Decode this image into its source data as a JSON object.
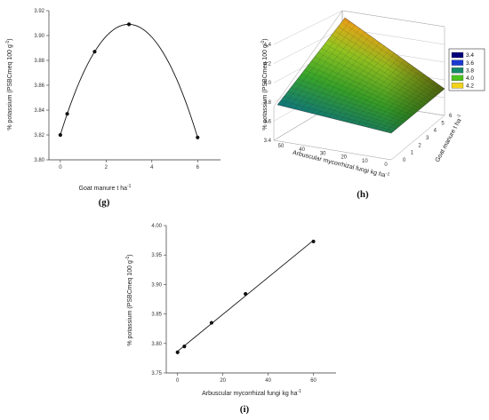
{
  "chart_data": [
    {
      "panel": "(g)",
      "type": "line",
      "xlabel": "Goat manure t ha",
      "xlabel_sup": "-1",
      "ylabel": "% potassium (PSBCmeq 100 g",
      "ylabel_sup": "-1",
      "ylabel_end": ")",
      "xlim": [
        -0.5,
        7
      ],
      "ylim": [
        3.8,
        3.92
      ],
      "xticks": [
        "0",
        "2",
        "4",
        "6"
      ],
      "yticks": [
        "3.80",
        "3.82",
        "3.84",
        "3.86",
        "3.88",
        "3.90",
        "3.92"
      ],
      "points": [
        {
          "x": 0,
          "y": 3.82
        },
        {
          "x": 0.3,
          "y": 3.837
        },
        {
          "x": 1.5,
          "y": 3.887
        },
        {
          "x": 3,
          "y": 3.909
        },
        {
          "x": 6,
          "y": 3.818
        }
      ],
      "fit": "quadratic"
    },
    {
      "panel": "(h)",
      "type": "surface",
      "xlabel": "Arbuscular mycorrhizal fungi kg ha",
      "xlabel_sup": "-1",
      "ylabel": "Goat manure t ha",
      "ylabel_sup": "-1",
      "zlabel": "% potassium (PSBCmeq 100 g",
      "zlabel_sup": "-1",
      "zlabel_end": ")",
      "xticks": [
        "50",
        "40",
        "30",
        "20",
        "10",
        "0"
      ],
      "yticks": [
        "0",
        "1",
        "2",
        "3",
        "4",
        "5",
        "6"
      ],
      "zticks": [
        "3.4",
        "3.6",
        "3.8",
        "4.0",
        "4.2",
        "4.4"
      ],
      "legend": {
        "placement": "top-right",
        "entries": [
          {
            "label": "3.4",
            "color": "#00007a"
          },
          {
            "label": "3.6",
            "color": "#1a3ad0"
          },
          {
            "label": "3.8",
            "color": "#178a6a"
          },
          {
            "label": "4.0",
            "color": "#4cc21e"
          },
          {
            "label": "4.2",
            "color": "#f2d21a"
          }
        ]
      }
    },
    {
      "panel": "(i)",
      "type": "line",
      "xlabel": "Arbuscular mycorrhizal fungi kg ha",
      "xlabel_sup": "-1",
      "ylabel": "% potassium (PSBCmeq 100 g",
      "ylabel_sup": "-1",
      "ylabel_end": ")",
      "xlim": [
        -5,
        70
      ],
      "ylim": [
        3.75,
        4.0
      ],
      "xticks": [
        "0",
        "20",
        "40",
        "60"
      ],
      "yticks": [
        "3.75",
        "3.80",
        "3.85",
        "3.90",
        "3.95",
        "4.00"
      ],
      "points": [
        {
          "x": 0,
          "y": 3.785
        },
        {
          "x": 3,
          "y": 3.795
        },
        {
          "x": 15,
          "y": 3.835
        },
        {
          "x": 30,
          "y": 3.884
        },
        {
          "x": 60,
          "y": 3.973
        }
      ],
      "fit": "linear"
    }
  ]
}
